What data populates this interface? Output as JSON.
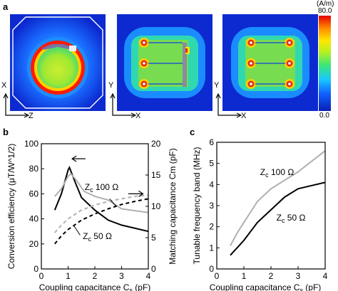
{
  "panel_a": {
    "letter": "a",
    "colorbar": {
      "unit": "(A/m)",
      "max_label": "80.0",
      "min_label": "0.0"
    },
    "maps": [
      {
        "axes": {
          "vertical": "X",
          "horizontal": "Z"
        }
      },
      {
        "axes": {
          "vertical": "Y",
          "horizontal": "X"
        }
      },
      {
        "axes": {
          "vertical": "Y",
          "horizontal": "X"
        }
      }
    ]
  },
  "chart_data": [
    {
      "panel": "b",
      "type": "line",
      "xlabel": "Coupling capacitance Cs (pF)",
      "ylabel_left": "Conversion efficiency (μT/W^1/2)",
      "ylabel_right": "Matching capacitance Cm (pF)",
      "xlim": [
        0,
        4
      ],
      "ylim_left": [
        0,
        100
      ],
      "ylim_right": [
        0,
        20
      ],
      "xticks": [
        "0",
        "1",
        "2",
        "3",
        "4"
      ],
      "yticks_left": [
        "0",
        "20",
        "40",
        "60",
        "80",
        "100"
      ],
      "yticks_right": [
        "0",
        "5",
        "10",
        "15",
        "20"
      ],
      "annotations": [
        "Zc 100 Ω",
        "Zc 50 Ω"
      ],
      "series": [
        {
          "axis": "left",
          "style": "solid",
          "color": "#000000",
          "x": [
            0.5,
            0.75,
            1.0,
            1.05,
            1.25,
            1.5,
            2.0,
            2.5,
            3.0,
            4.0
          ],
          "y": [
            47,
            60,
            79,
            81,
            70,
            57,
            47,
            39,
            35,
            30
          ]
        },
        {
          "axis": "left",
          "style": "solid",
          "color": "#b0b0b0",
          "x": [
            0.5,
            0.75,
            1.0,
            1.1,
            1.3,
            1.6,
            2.0,
            2.5,
            3.0,
            4.0
          ],
          "y": [
            58,
            64,
            74,
            76,
            71,
            62,
            58,
            55,
            48,
            45
          ]
        },
        {
          "axis": "right",
          "style": "dashed",
          "color": "#000000",
          "x": [
            0.5,
            0.75,
            1.0,
            1.5,
            2.0,
            2.5,
            3.0,
            3.5,
            4.0
          ],
          "y": [
            4.0,
            5.3,
            6.3,
            7.8,
            8.8,
            9.6,
            10.3,
            10.8,
            11.2
          ]
        },
        {
          "axis": "right",
          "style": "dashed",
          "color": "#b0b0b0",
          "x": [
            0.5,
            0.75,
            1.0,
            1.5,
            2.0,
            2.5,
            3.0,
            3.5,
            4.0
          ],
          "y": [
            5.8,
            7.0,
            8.0,
            9.4,
            10.2,
            10.8,
            11.2,
            11.6,
            11.8
          ]
        }
      ]
    },
    {
      "panel": "c",
      "type": "line",
      "xlabel": "Coupling capacitance Cs (pF)",
      "ylabel": "Tunable frequency band (MHz)",
      "xlim": [
        0,
        4
      ],
      "ylim": [
        0,
        6
      ],
      "xticks": [
        "0",
        "1",
        "2",
        "3",
        "4"
      ],
      "yticks": [
        "0",
        "1",
        "2",
        "3",
        "4",
        "5",
        "6"
      ],
      "annotations": [
        "Zc 100 Ω",
        "Zc 50 Ω"
      ],
      "series": [
        {
          "style": "solid",
          "color": "#b0b0b0",
          "x": [
            0.5,
            0.75,
            1.0,
            1.5,
            2.0,
            2.5,
            3.0,
            3.5,
            4.0
          ],
          "y": [
            1.1,
            1.7,
            2.2,
            3.2,
            3.8,
            4.2,
            4.6,
            5.1,
            5.6
          ]
        },
        {
          "style": "solid",
          "color": "#000000",
          "x": [
            0.5,
            0.75,
            1.0,
            1.5,
            2.0,
            2.5,
            3.0,
            3.5,
            4.0
          ],
          "y": [
            0.65,
            1.0,
            1.35,
            2.2,
            2.8,
            3.4,
            3.8,
            3.95,
            4.1
          ]
        }
      ]
    }
  ]
}
